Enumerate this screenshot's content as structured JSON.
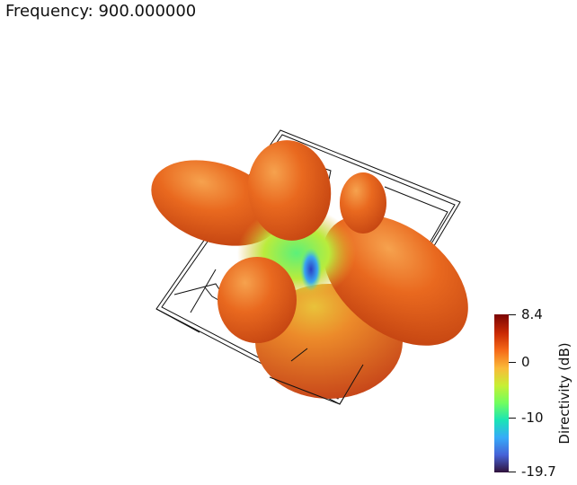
{
  "header": {
    "frequency_text": "Frequency: 900.000000"
  },
  "colorbar": {
    "title": "Directivity (dB)",
    "max_label": "8.4",
    "zero_label": "0",
    "mid_label": "-10",
    "min_label": "-19.7",
    "max_value": 8.4,
    "min_value": -19.7,
    "colormap": [
      "#30123b",
      "#4662d7",
      "#36aaf9",
      "#1ae4b6",
      "#72fe5e",
      "#c7ef34",
      "#faba39",
      "#f66b19",
      "#ca2a04",
      "#7a0403"
    ]
  },
  "scene": {
    "lobe_color": "#e8641e",
    "null_color": "#3c5ce0",
    "board_outline_color": "#111111"
  }
}
